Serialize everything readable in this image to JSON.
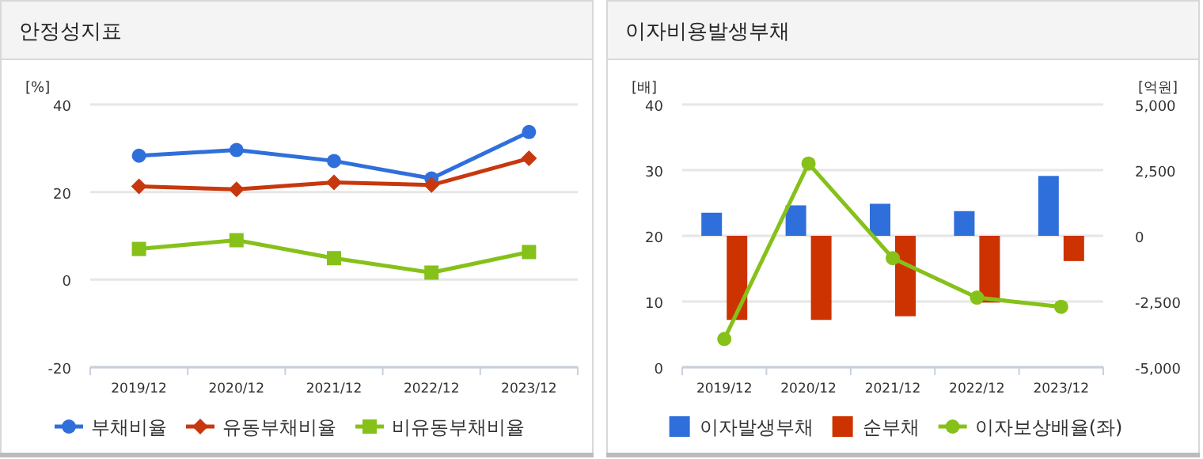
{
  "chart_data": [
    {
      "type": "line",
      "title": "안정성지표",
      "ylabel": "[%]",
      "categories": [
        "2019/12",
        "2020/12",
        "2021/12",
        "2022/12",
        "2023/12"
      ],
      "ylim": [
        -20,
        40
      ],
      "yticks": [
        -20,
        0,
        20,
        40
      ],
      "grid": "y",
      "legend": "bottom",
      "series": [
        {
          "name": "부채비율",
          "color": "#2f6fdc",
          "marker": "circle",
          "values": [
            28.3,
            29.6,
            27.1,
            23.1,
            33.7
          ]
        },
        {
          "name": "유동부채비율",
          "color": "#c8380e",
          "marker": "diamond",
          "values": [
            21.3,
            20.6,
            22.2,
            21.6,
            27.7
          ]
        },
        {
          "name": "비유동부채비율",
          "color": "#86c11a",
          "marker": "square",
          "values": [
            7.0,
            9.0,
            4.9,
            1.6,
            6.3
          ]
        }
      ]
    },
    {
      "type": "bar",
      "title": "이자비용발생부채",
      "ylabel": "[배]",
      "y2label": "[억원]",
      "categories": [
        "2019/12",
        "2020/12",
        "2021/12",
        "2022/12",
        "2023/12"
      ],
      "ylim": [
        0,
        40
      ],
      "yticks": [
        0,
        10,
        20,
        30,
        40
      ],
      "y2lim": [
        -5000,
        5000
      ],
      "y2ticks": [
        {
          "value": -5000,
          "label": "-5,000"
        },
        {
          "value": -2500,
          "label": "-2,500"
        },
        0,
        {
          "value": 2500,
          "label": "2,500"
        },
        {
          "value": 5000,
          "label": "5,000"
        }
      ],
      "grid": "y",
      "legend": "bottom",
      "series": [
        {
          "name": "이자발생부채",
          "axis": "y2",
          "color": "#2f6fdc",
          "values": [
            880,
            1160,
            1220,
            940,
            2280
          ]
        },
        {
          "name": "순부채",
          "axis": "y2",
          "color": "#cc3300",
          "values": [
            -3200,
            -3200,
            -3060,
            -2540,
            -960
          ]
        },
        {
          "name": "이자보상배율(좌)",
          "type": "line",
          "color": "#86c11a",
          "marker": "circle",
          "values": [
            4.3,
            31.0,
            16.6,
            10.6,
            9.2
          ]
        }
      ]
    }
  ]
}
